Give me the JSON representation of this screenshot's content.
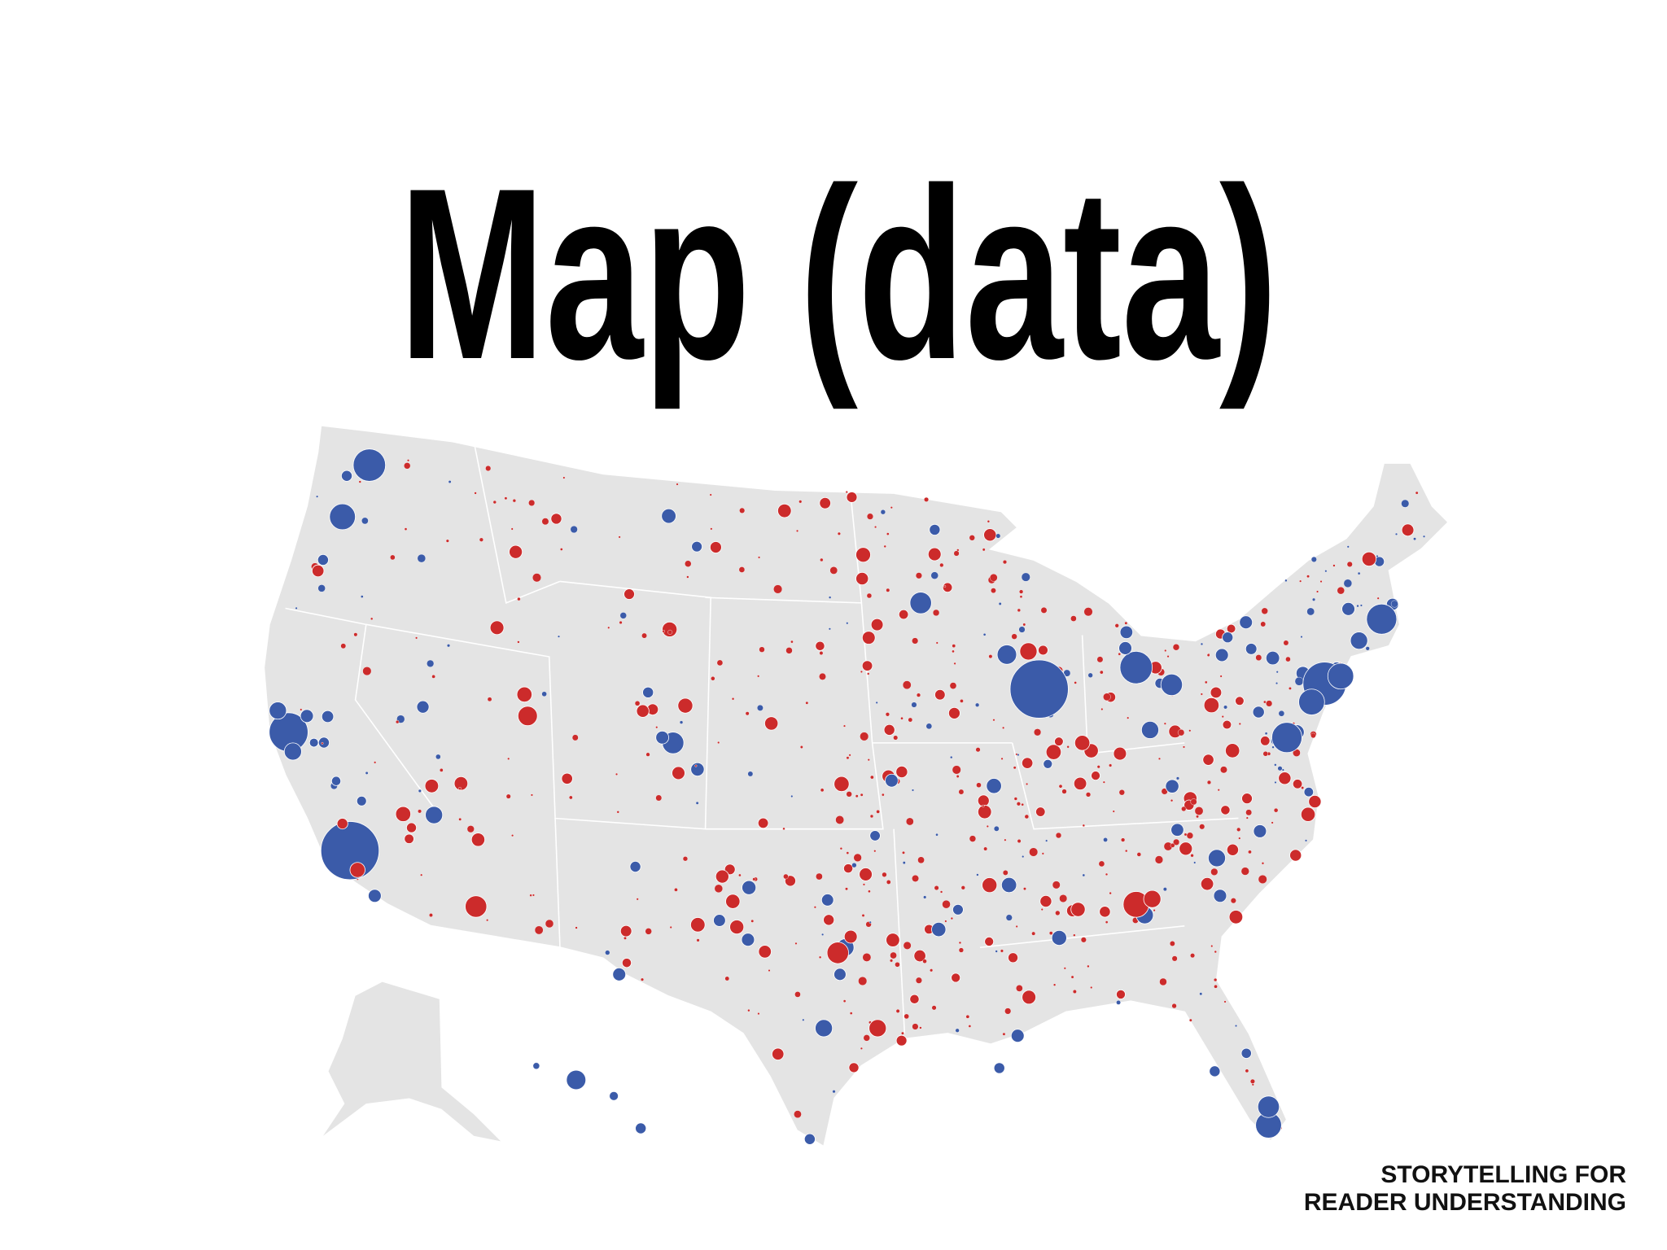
{
  "title": "Map (data)",
  "footer": {
    "line1": "STORYTELLING FOR",
    "line2": "READER UNDERSTANDING"
  }
}
